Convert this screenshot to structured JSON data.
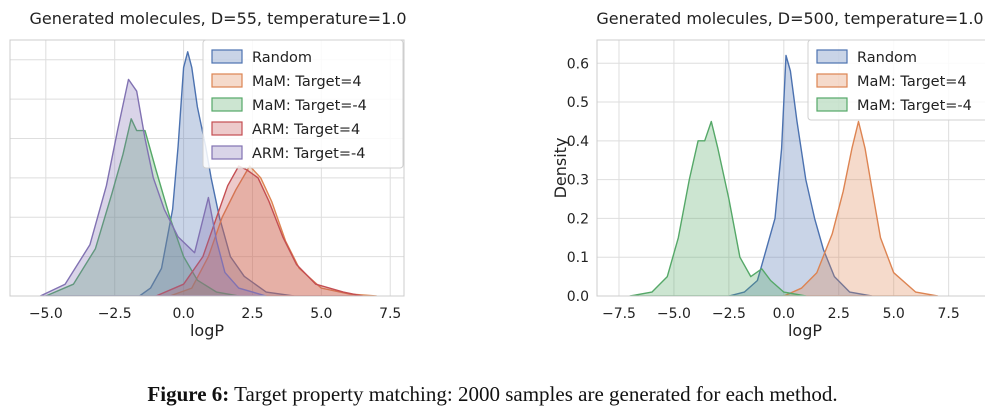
{
  "caption": {
    "label": "Figure 6:",
    "text": "Target property matching: 2000 samples are generated for each method."
  },
  "chart_data": [
    {
      "type": "area",
      "title": "Generated molecules, D=55, temperature=1.0",
      "xlabel": "logP",
      "ylabel": "",
      "xlim": [
        -6.3,
        8.0
      ],
      "ylim": [
        0,
        0.65
      ],
      "xticks": [
        -5.0,
        -2.5,
        0.0,
        2.5,
        5.0,
        7.5
      ],
      "xtick_labels": [
        "−5.0",
        "−2.5",
        "0.0",
        "2.5",
        "5.0",
        "7.5"
      ],
      "yticks": [
        0.0,
        0.1,
        0.2,
        0.3,
        0.4,
        0.5,
        0.6
      ],
      "ytick_labels": [],
      "grid": true,
      "legend_position": "top-right",
      "series": [
        {
          "name": "Random",
          "color": "#4c72b0",
          "points": [
            [
              -1.6,
              0
            ],
            [
              -1.2,
              0.02
            ],
            [
              -0.8,
              0.07
            ],
            [
              -0.4,
              0.22
            ],
            [
              -0.2,
              0.38
            ],
            [
              0.0,
              0.58
            ],
            [
              0.15,
              0.62
            ],
            [
              0.3,
              0.58
            ],
            [
              0.5,
              0.48
            ],
            [
              0.8,
              0.38
            ],
            [
              1.0,
              0.3
            ],
            [
              1.3,
              0.2
            ],
            [
              1.7,
              0.1
            ],
            [
              2.2,
              0.05
            ],
            [
              3.0,
              0.01
            ],
            [
              4.0,
              0
            ]
          ]
        },
        {
          "name": "MaM: Target=4",
          "color": "#dd8452",
          "points": [
            [
              -0.5,
              0
            ],
            [
              0.3,
              0.02
            ],
            [
              0.9,
              0.1
            ],
            [
              1.4,
              0.2
            ],
            [
              1.9,
              0.27
            ],
            [
              2.4,
              0.33
            ],
            [
              2.8,
              0.3
            ],
            [
              3.2,
              0.24
            ],
            [
              3.7,
              0.14
            ],
            [
              4.2,
              0.07
            ],
            [
              5.0,
              0.02
            ],
            [
              6.0,
              0.005
            ],
            [
              7.0,
              0
            ]
          ]
        },
        {
          "name": "MaM: Target=-4",
          "color": "#55a868",
          "points": [
            [
              -5.0,
              0
            ],
            [
              -4.0,
              0.03
            ],
            [
              -3.2,
              0.12
            ],
            [
              -2.6,
              0.26
            ],
            [
              -2.2,
              0.36
            ],
            [
              -1.9,
              0.45
            ],
            [
              -1.7,
              0.42
            ],
            [
              -1.4,
              0.42
            ],
            [
              -1.0,
              0.32
            ],
            [
              -0.5,
              0.2
            ],
            [
              0.0,
              0.1
            ],
            [
              0.5,
              0.04
            ],
            [
              1.2,
              0.01
            ],
            [
              2.0,
              0
            ]
          ]
        },
        {
          "name": "ARM: Target=4",
          "color": "#c44e52",
          "points": [
            [
              -1.0,
              0
            ],
            [
              0.0,
              0.03
            ],
            [
              0.7,
              0.1
            ],
            [
              1.2,
              0.2
            ],
            [
              1.6,
              0.28
            ],
            [
              2.0,
              0.33
            ],
            [
              2.3,
              0.32
            ],
            [
              2.7,
              0.3
            ],
            [
              3.1,
              0.24
            ],
            [
              3.6,
              0.15
            ],
            [
              4.1,
              0.08
            ],
            [
              4.8,
              0.03
            ],
            [
              5.8,
              0.01
            ],
            [
              6.5,
              0
            ]
          ]
        },
        {
          "name": "ARM: Target=-4",
          "color": "#8172b2",
          "points": [
            [
              -5.2,
              0
            ],
            [
              -4.3,
              0.03
            ],
            [
              -3.4,
              0.13
            ],
            [
              -2.8,
              0.28
            ],
            [
              -2.4,
              0.42
            ],
            [
              -2.0,
              0.55
            ],
            [
              -1.7,
              0.52
            ],
            [
              -1.4,
              0.4
            ],
            [
              -1.1,
              0.3
            ],
            [
              -0.7,
              0.22
            ],
            [
              -0.2,
              0.15
            ],
            [
              0.4,
              0.11
            ],
            [
              0.9,
              0.25
            ],
            [
              1.2,
              0.14
            ],
            [
              1.5,
              0.06
            ],
            [
              2.0,
              0.02
            ],
            [
              3.0,
              0
            ]
          ]
        }
      ]
    },
    {
      "type": "area",
      "title": "Generated molecules, D=500, temperature=1.0",
      "xlabel": "logP",
      "ylabel": "Density",
      "xlim": [
        -8.5,
        9.7
      ],
      "ylim": [
        0,
        0.66
      ],
      "xticks": [
        -7.5,
        -5.0,
        -2.5,
        0.0,
        2.5,
        5.0,
        7.5
      ],
      "xtick_labels": [
        "−7.5",
        "−5.0",
        "−2.5",
        "0.0",
        "2.5",
        "5.0",
        "7.5"
      ],
      "yticks": [
        0.0,
        0.1,
        0.2,
        0.3,
        0.4,
        0.5,
        0.6
      ],
      "ytick_labels": [
        "0.0",
        "0.1",
        "0.2",
        "0.3",
        "0.4",
        "0.5",
        "0.6"
      ],
      "grid": true,
      "legend_position": "top-right",
      "series": [
        {
          "name": "Random",
          "color": "#4c72b0",
          "points": [
            [
              -2.5,
              0
            ],
            [
              -1.8,
              0.01
            ],
            [
              -1.2,
              0.04
            ],
            [
              -0.8,
              0.12
            ],
            [
              -0.4,
              0.2
            ],
            [
              -0.1,
              0.38
            ],
            [
              0.1,
              0.62
            ],
            [
              0.3,
              0.58
            ],
            [
              0.6,
              0.45
            ],
            [
              1.0,
              0.3
            ],
            [
              1.4,
              0.2
            ],
            [
              1.8,
              0.12
            ],
            [
              2.3,
              0.05
            ],
            [
              3.0,
              0.01
            ],
            [
              4.0,
              0
            ]
          ]
        },
        {
          "name": "MaM: Target=4",
          "color": "#dd8452",
          "points": [
            [
              0.0,
              0
            ],
            [
              0.8,
              0.02
            ],
            [
              1.5,
              0.06
            ],
            [
              2.2,
              0.16
            ],
            [
              2.7,
              0.27
            ],
            [
              3.1,
              0.38
            ],
            [
              3.4,
              0.45
            ],
            [
              3.7,
              0.38
            ],
            [
              4.0,
              0.28
            ],
            [
              4.4,
              0.15
            ],
            [
              5.0,
              0.06
            ],
            [
              6.0,
              0.01
            ],
            [
              7.0,
              0
            ]
          ]
        },
        {
          "name": "MaM: Target=-4",
          "color": "#55a868",
          "points": [
            [
              -7.0,
              0
            ],
            [
              -6.0,
              0.01
            ],
            [
              -5.3,
              0.05
            ],
            [
              -4.8,
              0.15
            ],
            [
              -4.3,
              0.3
            ],
            [
              -3.9,
              0.4
            ],
            [
              -3.6,
              0.4
            ],
            [
              -3.3,
              0.45
            ],
            [
              -3.0,
              0.38
            ],
            [
              -2.5,
              0.25
            ],
            [
              -2.0,
              0.1
            ],
            [
              -1.5,
              0.05
            ],
            [
              -1.0,
              0.07
            ],
            [
              -0.6,
              0.04
            ],
            [
              0.0,
              0.01
            ],
            [
              1.0,
              0
            ]
          ]
        }
      ]
    }
  ]
}
